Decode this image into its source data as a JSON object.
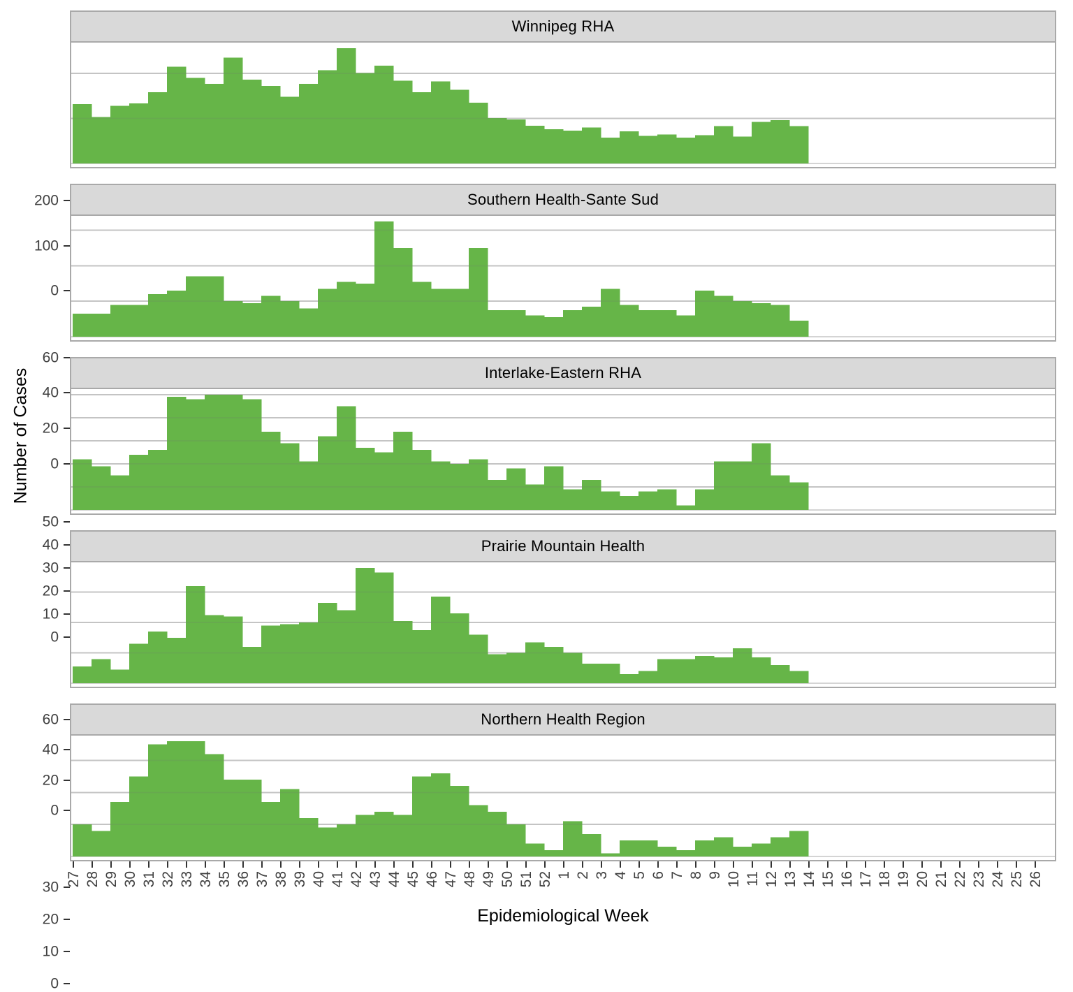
{
  "figure": {
    "y_axis_title": "Number of Cases",
    "x_axis_title": "Epidemiological Week",
    "bar_color": "#66b548",
    "strip_background": "#d9d9d9",
    "panel_border_color": "#a9a9a9",
    "gridline_color": "#d4d4d4",
    "axis_text_color": "#404040",
    "tick_mark_color": "#333333"
  },
  "chart_data": {
    "type": "bar",
    "chart_kind": "faceted-epidemic-curve-histogram",
    "title": "",
    "xlabel": "Epidemiological Week",
    "ylabel": "Number of Cases",
    "legend": "none",
    "grid": "major-y",
    "x_categories": [
      "27",
      "28",
      "29",
      "30",
      "31",
      "32",
      "33",
      "34",
      "35",
      "36",
      "37",
      "38",
      "39",
      "40",
      "41",
      "42",
      "43",
      "44",
      "45",
      "46",
      "47",
      "48",
      "49",
      "50",
      "51",
      "52",
      "1",
      "2",
      "3",
      "4",
      "5",
      "6",
      "7",
      "8",
      "9",
      "10",
      "11",
      "12",
      "13",
      "14",
      "15",
      "16",
      "17",
      "18",
      "19",
      "20",
      "21",
      "22",
      "23",
      "24",
      "25",
      "26"
    ],
    "data_weeks": [
      "27",
      "28",
      "29",
      "30",
      "31",
      "32",
      "33",
      "34",
      "35",
      "36",
      "37",
      "38",
      "39",
      "40",
      "41",
      "42",
      "43",
      "44",
      "45",
      "46",
      "47",
      "48",
      "49",
      "50",
      "51",
      "52",
      "1",
      "2",
      "3",
      "4",
      "5",
      "6",
      "7",
      "8",
      "9",
      "10",
      "11",
      "12",
      "13"
    ],
    "facets": [
      {
        "title": "Winnipeg RHA",
        "yticks": [
          0,
          100,
          200
        ],
        "values": [
          132,
          103,
          128,
          133,
          158,
          215,
          190,
          177,
          235,
          186,
          172,
          148,
          177,
          207,
          256,
          201,
          217,
          184,
          158,
          182,
          164,
          135,
          101,
          98,
          84,
          76,
          73,
          80,
          57,
          71,
          61,
          64,
          57,
          63,
          83,
          60,
          92,
          96,
          83
        ]
      },
      {
        "title": "Southern Health-Sante Sud",
        "yticks": [
          0,
          20,
          40,
          60
        ],
        "values": [
          13,
          13,
          18,
          18,
          24,
          26,
          34,
          34,
          20,
          19,
          23,
          20,
          16,
          27,
          31,
          30,
          65,
          50,
          31,
          27,
          27,
          50,
          15,
          15,
          12,
          11,
          15,
          17,
          27,
          18,
          15,
          15,
          12,
          26,
          23,
          20,
          19,
          18,
          9
        ]
      },
      {
        "title": "Interlake-Eastern RHA",
        "yticks": [
          0,
          10,
          20,
          30,
          40,
          50
        ],
        "values": [
          22,
          19,
          15,
          24,
          26,
          49,
          48,
          50,
          50,
          48,
          34,
          29,
          21,
          32,
          45,
          27,
          25,
          34,
          26,
          21,
          20,
          22,
          13,
          18,
          11,
          19,
          9,
          13,
          8,
          6,
          8,
          9,
          2,
          9,
          21,
          21,
          29,
          15,
          12
        ]
      },
      {
        "title": "Prairie Mountain Health",
        "yticks": [
          0,
          20,
          40,
          60
        ],
        "values": [
          11,
          16,
          9,
          26,
          34,
          30,
          64,
          45,
          44,
          24,
          38,
          39,
          40,
          53,
          48,
          76,
          73,
          41,
          35,
          57,
          46,
          32,
          19,
          20,
          27,
          24,
          20,
          13,
          13,
          6,
          8,
          16,
          16,
          18,
          17,
          23,
          17,
          12,
          8
        ]
      },
      {
        "title": "Northern Health Region",
        "yticks": [
          0,
          10,
          20,
          30
        ],
        "values": [
          10,
          8,
          17,
          25,
          35,
          36,
          36,
          32,
          24,
          24,
          17,
          21,
          12,
          9,
          10,
          13,
          14,
          13,
          25,
          26,
          22,
          16,
          14,
          10,
          4,
          2,
          11,
          7,
          1,
          5,
          5,
          3,
          2,
          5,
          6,
          3,
          4,
          6,
          8
        ]
      }
    ]
  }
}
